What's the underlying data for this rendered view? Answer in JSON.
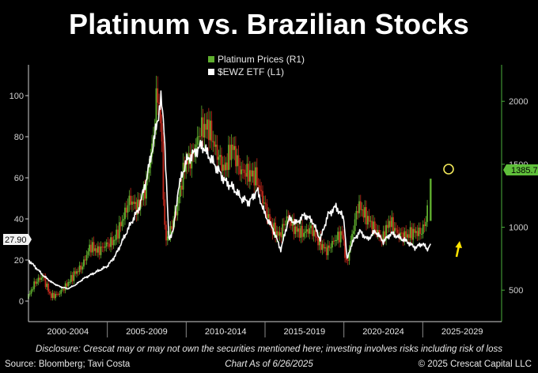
{
  "title": "Platinum vs. Brazilian Stocks",
  "disclosure": "Disclosure: Crescat may or may not own the securities mentioned here; investing involves risks including risk of loss",
  "footer": {
    "source": "Source: Bloomberg; Tavi Costa",
    "as_of": "Chart As of 6/26/2025",
    "copyright": "© 2025 Crescat Capital LLC"
  },
  "colors": {
    "background": "#000000",
    "platinum_up": "#5fae2e",
    "platinum_down": "#c4281c",
    "ewz": "#ffffff",
    "right_axis": "#4caf3c",
    "last_value_badge": "#5fbf3a",
    "highlight_circle": "#f2e85a",
    "arrow": "#ffe400"
  },
  "chart_data": {
    "type": "line",
    "x_tick_labels": [
      "2000-2004",
      "2005-2009",
      "2010-2014",
      "2015-2019",
      "2020-2024",
      "2025-2029"
    ],
    "xlim": [
      2000,
      2030
    ],
    "left_axis": {
      "ticks": [
        0,
        20,
        40,
        60,
        80,
        100
      ],
      "ylim": [
        -10,
        115
      ],
      "last_value_label": "27.90"
    },
    "right_axis": {
      "ticks": [
        500,
        1000,
        1500,
        2000
      ],
      "ylim": [
        250,
        2290
      ],
      "last_value_label": "1385.70"
    },
    "legend": {
      "placement": "top-center",
      "entries": [
        "Platinum Prices (R1)",
        "$EWZ ETF (L1)"
      ]
    },
    "series": [
      {
        "name": "Platinum Prices (R1)",
        "axis": "right",
        "style": "candlestick",
        "x": [
          2000.0,
          2000.5,
          2001.0,
          2001.5,
          2002.0,
          2002.5,
          2003.0,
          2003.5,
          2004.0,
          2004.5,
          2005.0,
          2005.5,
          2006.0,
          2006.5,
          2007.0,
          2007.5,
          2008.0,
          2008.25,
          2008.5,
          2008.75,
          2009.0,
          2009.5,
          2010.0,
          2010.5,
          2011.0,
          2011.5,
          2012.0,
          2012.5,
          2013.0,
          2013.5,
          2014.0,
          2014.5,
          2015.0,
          2015.5,
          2016.0,
          2016.5,
          2017.0,
          2017.5,
          2018.0,
          2018.5,
          2019.0,
          2019.5,
          2020.0,
          2020.25,
          2020.5,
          2021.0,
          2021.5,
          2022.0,
          2022.5,
          2023.0,
          2023.5,
          2024.0,
          2024.5,
          2025.0,
          2025.3,
          2025.5
        ],
        "y": [
          430,
          560,
          610,
          450,
          470,
          540,
          630,
          690,
          850,
          810,
          860,
          890,
          1040,
          1220,
          1150,
          1300,
          1700,
          2100,
          1800,
          900,
          940,
          1150,
          1500,
          1560,
          1780,
          1800,
          1600,
          1450,
          1650,
          1450,
          1430,
          1400,
          1200,
          1000,
          930,
          1080,
          980,
          950,
          990,
          880,
          810,
          900,
          950,
          700,
          870,
          1180,
          1080,
          1000,
          900,
          1050,
          950,
          930,
          960,
          960,
          1050,
          1385.7
        ]
      },
      {
        "name": "$EWZ ETF (L1)",
        "axis": "left",
        "style": "line",
        "x": [
          2000.0,
          2000.5,
          2001.0,
          2001.5,
          2002.0,
          2002.5,
          2003.0,
          2003.5,
          2004.0,
          2004.5,
          2005.0,
          2005.5,
          2006.0,
          2006.5,
          2007.0,
          2007.5,
          2008.0,
          2008.4,
          2008.6,
          2008.9,
          2009.2,
          2009.5,
          2010.0,
          2010.5,
          2011.0,
          2011.5,
          2012.0,
          2012.5,
          2013.0,
          2013.5,
          2014.0,
          2014.5,
          2015.0,
          2015.5,
          2016.0,
          2016.5,
          2017.0,
          2017.5,
          2018.0,
          2018.5,
          2019.0,
          2019.5,
          2020.0,
          2020.2,
          2020.5,
          2021.0,
          2021.5,
          2022.0,
          2022.5,
          2023.0,
          2023.5,
          2024.0,
          2024.5,
          2025.0,
          2025.3,
          2025.5
        ],
        "y": [
          20,
          16,
          12,
          9,
          7,
          6,
          8,
          11,
          13,
          15,
          17,
          22,
          30,
          38,
          45,
          60,
          80,
          98,
          85,
          30,
          35,
          55,
          68,
          72,
          76,
          70,
          64,
          58,
          55,
          50,
          48,
          54,
          42,
          35,
          25,
          40,
          38,
          42,
          39,
          30,
          42,
          46,
          40,
          20,
          28,
          34,
          30,
          34,
          29,
          33,
          31,
          29,
          26,
          28,
          25,
          27.9
        ]
      }
    ]
  }
}
